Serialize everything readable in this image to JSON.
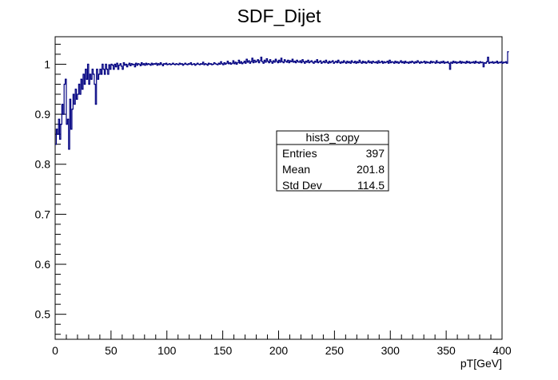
{
  "chart_data": {
    "type": "step",
    "title": "SDF_Dijet",
    "xlabel": "pT[GeV]",
    "ylabel": "",
    "xlim": [
      0,
      400
    ],
    "ylim": [
      0.45,
      1.055
    ],
    "x_ticks": [
      0,
      50,
      100,
      150,
      200,
      250,
      300,
      350,
      400
    ],
    "x_tick_labels": [
      "0",
      "50",
      "100",
      "150",
      "200",
      "250",
      "300",
      "350",
      "400"
    ],
    "y_ticks": [
      0.5,
      0.6,
      0.7,
      0.8,
      0.9,
      1.0
    ],
    "y_tick_labels": [
      "0.5",
      "0.6",
      "0.7",
      "0.8",
      "0.9",
      "1"
    ],
    "grid": false,
    "bin_width": 1,
    "series": [
      {
        "name": "hist3_copy",
        "color": "#000080",
        "x_start": 0,
        "values": [
          0.84,
          0.87,
          0.86,
          0.89,
          0.85,
          0.88,
          0.92,
          0.9,
          0.96,
          0.97,
          0.88,
          0.89,
          0.83,
          0.93,
          0.87,
          0.91,
          0.94,
          0.92,
          0.95,
          0.93,
          0.94,
          0.96,
          0.94,
          0.97,
          0.95,
          0.98,
          0.96,
          0.99,
          0.97,
          1.0,
          0.96,
          0.98,
          0.97,
          0.99,
          0.98,
          0.96,
          0.92,
          0.99,
          0.97,
          0.98,
          0.99,
          0.98,
          1.0,
          0.99,
          0.98,
          1.0,
          0.99,
          0.98,
          0.999,
          0.99,
          1.0,
          0.998,
          0.99,
          1.0,
          0.995,
          1.002,
          0.99,
          0.998,
          1.001,
          0.996,
          0.99,
          1.003,
          0.998,
          1.0,
          0.995,
          0.999,
          1.002,
          0.997,
          1.001,
          0.999,
          1.0,
          0.995,
          1.002,
          0.998,
          1.001,
          1.0,
          0.997,
          1.003,
          0.999,
          1.001,
          0.998,
          1.002,
          0.999,
          1.001,
          1.0,
          0.998,
          1.002,
          0.999,
          1.001,
          1.0,
          1.002,
          0.998,
          1.001,
          0.999,
          1.003,
          1.0,
          0.997,
          1.001,
          1.0,
          1.002,
          0.999,
          1.0,
          1.001,
          0.999,
          1.0,
          1.002,
          1.0,
          0.999,
          1.001,
          1.0,
          0.999,
          1.002,
          1.0,
          1.001,
          0.998,
          1.0,
          1.002,
          1.0,
          0.999,
          1.001,
          1.0,
          1.003,
          0.999,
          1.0,
          1.001,
          0.998,
          1.0,
          1.002,
          1.0,
          0.999,
          1.001,
          1.0,
          1.004,
          0.999,
          1.001,
          1.0,
          0.998,
          1.002,
          1.0,
          1.001,
          0.999,
          1.0,
          1.003,
          1.001,
          1.0,
          0.999,
          1.002,
          1.0,
          1.005,
          1.001,
          0.999,
          1.003,
          1.0,
          1.002,
          1.006,
          1.001,
          1.003,
          1.0,
          1.002,
          1.007,
          1.001,
          1.004,
          1.0,
          1.003,
          1.008,
          1.002,
          1.005,
          1.001,
          1.003,
          1.006,
          1.002,
          1.01,
          1.004,
          1.007,
          1.002,
          1.005,
          1.012,
          1.003,
          1.008,
          1.004,
          1.006,
          1.009,
          1.003,
          1.007,
          1.014,
          1.005,
          1.002,
          1.008,
          1.004,
          1.011,
          1.006,
          1.003,
          1.009,
          1.005,
          1.002,
          1.007,
          1.004,
          1.01,
          1.006,
          1.003,
          1.008,
          1.004,
          1.012,
          1.005,
          1.003,
          1.009,
          1.006,
          1.004,
          1.008,
          1.003,
          1.007,
          1.005,
          1.01,
          1.004,
          1.006,
          1.003,
          1.008,
          1.005,
          1.004,
          1.007,
          1.003,
          1.009,
          1.005,
          1.002,
          1.006,
          1.004,
          1.008,
          1.003,
          1.005,
          1.007,
          1.004,
          1.002,
          1.006,
          1.004,
          1.009,
          1.003,
          1.005,
          1.007,
          1.002,
          1.004,
          1.006,
          1.003,
          1.008,
          1.004,
          1.002,
          1.006,
          1.003,
          1.005,
          1.007,
          1.002,
          1.004,
          1.006,
          1.003,
          1.008,
          1.004,
          1.002,
          1.005,
          1.003,
          1.007,
          1.004,
          1.002,
          1.006,
          1.003,
          1.005,
          1.002,
          1.007,
          1.004,
          1.003,
          1.006,
          1.002,
          1.005,
          1.003,
          1.008,
          1.004,
          1.002,
          1.006,
          1.003,
          1.005,
          1.002,
          1.004,
          1.007,
          1.003,
          1.005,
          1.002,
          1.006,
          1.004,
          1.003,
          1.005,
          1.002,
          1.007,
          1.003,
          1.004,
          1.006,
          1.002,
          1.005,
          1.003,
          1.004,
          1.006,
          1.002,
          1.008,
          1.003,
          1.005,
          1.004,
          1.002,
          1.006,
          1.003,
          1.005,
          1.002,
          1.004,
          1.007,
          1.003,
          1.005,
          1.002,
          1.006,
          1.003,
          1.004,
          1.002,
          1.005,
          1.003,
          1.006,
          1.004,
          1.002,
          1.005,
          1.003,
          1.007,
          1.004,
          1.002,
          1.005,
          1.003,
          1.004,
          1.006,
          1.002,
          1.005,
          1.003,
          1.004,
          1.002,
          1.006,
          1.003,
          1.005,
          1.004,
          1.002,
          1.007,
          1.003,
          1.004,
          1.002,
          1.005,
          1.003,
          1.006,
          1.002,
          1.004,
          1.003,
          1.005,
          1.002,
          0.99,
          1.004,
          1.002,
          1.006,
          1.003,
          1.005,
          1.002,
          1.004,
          1.003,
          1.006,
          1.002,
          1.005,
          1.003,
          1.004,
          1.002,
          1.006,
          1.003,
          1.005,
          1.002,
          1.004,
          1.003,
          1.005,
          1.002,
          1.006,
          1.003,
          1.004,
          1.002,
          1.005,
          1.003,
          1.004,
          0.995,
          1.003,
          1.002,
          1.005,
          1.014,
          1.002,
          1.004,
          1.003,
          1.005,
          1.002,
          1.004,
          1.003,
          1.006,
          1.002,
          1.004,
          1.003,
          1.005,
          1.002,
          1.004,
          1.003,
          1.005,
          1.002,
          1.025
        ]
      }
    ],
    "stats_box": {
      "title": "hist3_copy",
      "rows": [
        {
          "label": "Entries",
          "value": "397"
        },
        {
          "label": "Mean",
          "value": "201.8"
        },
        {
          "label": "Std Dev",
          "value": "114.5"
        }
      ]
    }
  }
}
